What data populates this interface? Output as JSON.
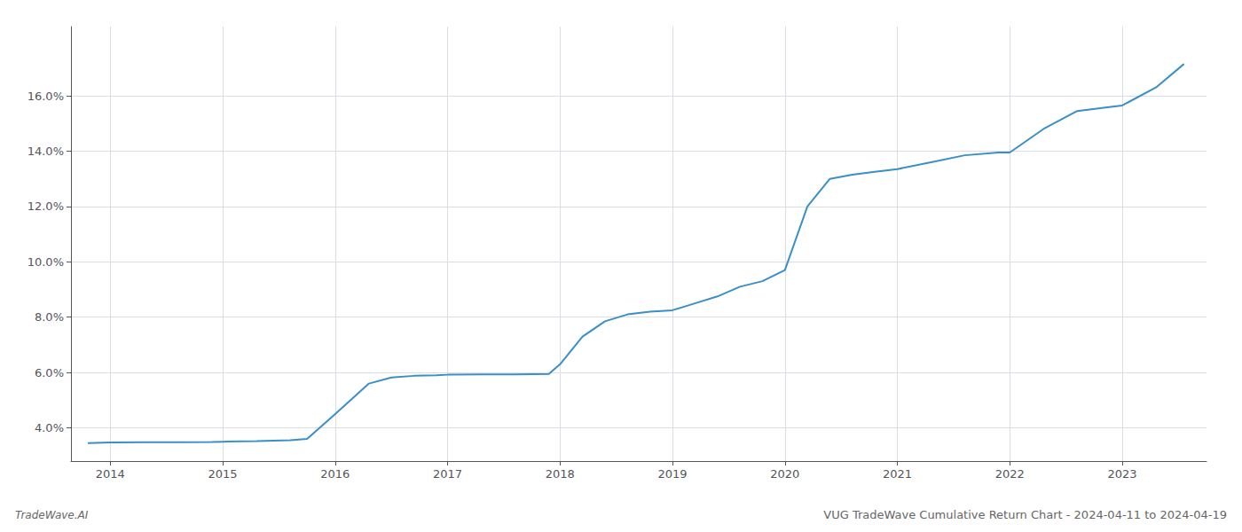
{
  "chart_data": {
    "type": "line",
    "title": "VUG TradeWave Cumulative Return Chart - 2024-04-11 to 2024-04-19",
    "annotations": [
      "TradeWave.AI"
    ],
    "color": "#3a8fc7",
    "grid": true,
    "x": [
      2013.8,
      2014.0,
      2014.3,
      2014.6,
      2014.9,
      2015.0,
      2015.3,
      2015.6,
      2015.75,
      2016.0,
      2016.3,
      2016.5,
      2016.7,
      2016.9,
      2017.0,
      2017.3,
      2017.6,
      2017.9,
      2018.0,
      2018.2,
      2018.4,
      2018.6,
      2018.8,
      2019.0,
      2019.2,
      2019.4,
      2019.6,
      2019.8,
      2020.0,
      2020.2,
      2020.4,
      2020.6,
      2020.8,
      2021.0,
      2021.3,
      2021.6,
      2021.9,
      2022.0,
      2022.3,
      2022.6,
      2022.9,
      2023.0,
      2023.3,
      2023.55
    ],
    "values": [
      3.45,
      3.47,
      3.48,
      3.48,
      3.49,
      3.5,
      3.52,
      3.55,
      3.6,
      4.5,
      5.6,
      5.82,
      5.88,
      5.9,
      5.92,
      5.93,
      5.93,
      5.95,
      6.3,
      7.3,
      7.85,
      8.1,
      8.2,
      8.25,
      8.5,
      8.75,
      9.1,
      9.3,
      9.7,
      12.0,
      13.0,
      13.15,
      13.25,
      13.35,
      13.6,
      13.85,
      13.95,
      13.95,
      14.8,
      15.45,
      15.6,
      15.65,
      16.3,
      17.15
    ],
    "xlim": [
      2013.65,
      2023.75
    ],
    "xticks": [
      2014,
      2015,
      2016,
      2017,
      2018,
      2019,
      2020,
      2021,
      2022,
      2023
    ],
    "ylim": [
      2.8,
      18.5
    ],
    "yticks": [
      {
        "value": 4.0,
        "label": "4.0%"
      },
      {
        "value": 6.0,
        "label": "6.0%"
      },
      {
        "value": 8.0,
        "label": "8.0%"
      },
      {
        "value": 10.0,
        "label": "10.0%"
      },
      {
        "value": 12.0,
        "label": "12.0%"
      },
      {
        "value": 14.0,
        "label": "14.0%"
      },
      {
        "value": 16.0,
        "label": "16.0%"
      }
    ]
  }
}
